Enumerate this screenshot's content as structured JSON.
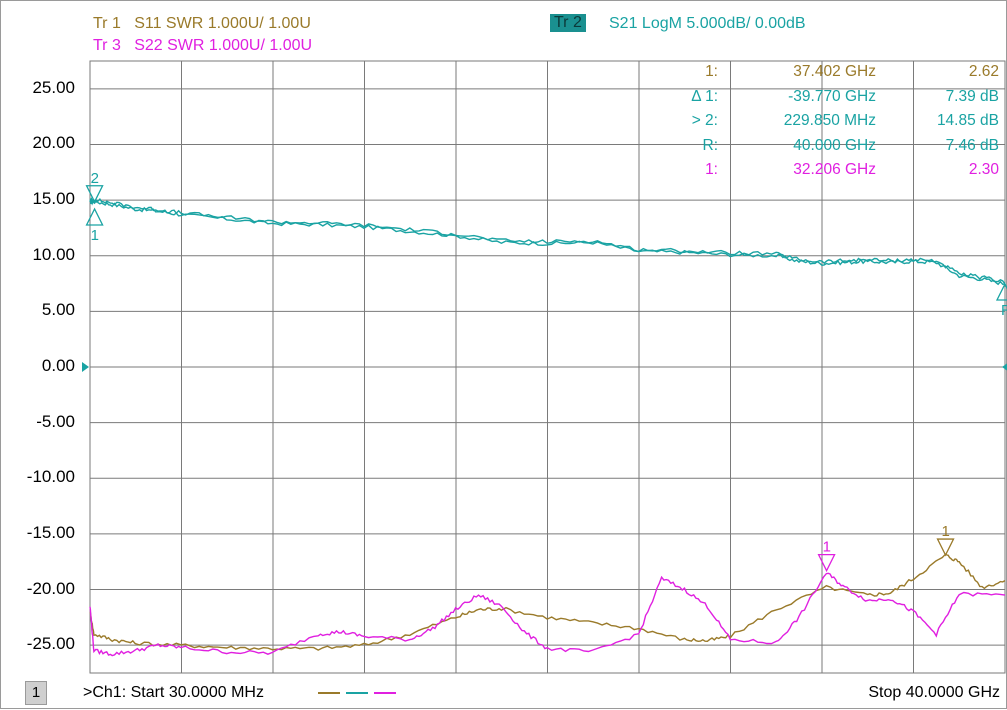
{
  "colors": {
    "tr1": "#9a7a2a",
    "tr2": "#1aa3a3",
    "tr3": "#e020e0",
    "grid": "#7a7a7a",
    "tr2_badge_bg": "#1a9090"
  },
  "traces": {
    "tr1": {
      "id": "Tr 1",
      "desc": "S11 SWR 1.000U/  1.00U"
    },
    "tr3": {
      "id": "Tr 3",
      "desc": "S22 SWR 1.000U/  1.00U"
    },
    "tr2": {
      "id": "Tr 2",
      "desc": "S21 LogM 5.000dB/  0.00dB"
    }
  },
  "markers_table": [
    {
      "name": "1:",
      "freq": "37.402 GHz",
      "value": "2.62",
      "trace": "tr1"
    },
    {
      "name": "Δ 1:",
      "freq": "-39.770 GHz",
      "value": "7.39 dB",
      "trace": "tr2"
    },
    {
      "name": "> 2:",
      "freq": "229.850 MHz",
      "value": "14.85 dB",
      "trace": "tr2"
    },
    {
      "name": "R:",
      "freq": "40.000 GHz",
      "value": "7.46 dB",
      "trace": "tr2"
    },
    {
      "name": "1:",
      "freq": "32.206 GHz",
      "value": "2.30",
      "trace": "tr3"
    }
  ],
  "status": {
    "channel_number": "1",
    "start": ">Ch1: Start  30.0000 MHz",
    "stop": "Stop  40.0000 GHz"
  },
  "chart_data": {
    "type": "line",
    "xlabel": "",
    "ylabel": "",
    "xlim": [
      0.03,
      40.0
    ],
    "x_unit": "GHz",
    "ylim": [
      -27.5,
      27.5
    ],
    "y_ticks": [
      "25.00",
      "20.00",
      "15.00",
      "10.00",
      "5.00",
      "0.00",
      "-5.00",
      "-10.00",
      "-15.00",
      "-20.00",
      "-25.00"
    ],
    "y_tick_values": [
      25,
      20,
      15,
      10,
      5,
      0,
      -5,
      -10,
      -15,
      -20,
      -25
    ],
    "grid": true,
    "reference_level": 0,
    "series": [
      {
        "name": "S21",
        "trace": "tr2",
        "x": [
          0.03,
          0.23,
          1.0,
          2.0,
          3.0,
          4.0,
          6.0,
          8.0,
          10.0,
          12.0,
          14.0,
          16.0,
          18.0,
          20.0,
          22.0,
          24.0,
          26.0,
          28.0,
          30.0,
          31.0,
          32.0,
          33.0,
          34.0,
          35.0,
          36.0,
          37.0,
          38.0,
          39.0,
          40.0
        ],
        "y": [
          14.8,
          14.85,
          14.6,
          14.2,
          14.0,
          13.7,
          13.3,
          12.9,
          12.8,
          12.6,
          12.2,
          11.8,
          11.2,
          11.1,
          11.2,
          10.4,
          10.3,
          10.1,
          10.0,
          9.5,
          9.3,
          9.4,
          9.5,
          9.4,
          9.5,
          9.4,
          8.2,
          7.9,
          7.46
        ]
      },
      {
        "name": "S11",
        "trace": "tr1",
        "x": [
          0.03,
          0.2,
          1.0,
          2.0,
          4.0,
          6.0,
          8.0,
          10.0,
          12.0,
          14.0,
          16.0,
          17.0,
          18.0,
          20.0,
          22.0,
          24.0,
          26.0,
          27.0,
          28.0,
          30.0,
          32.2,
          34.0,
          35.0,
          36.0,
          37.4,
          38.0,
          39.0,
          40.0
        ],
        "y": [
          -22.0,
          -24.0,
          -24.5,
          -24.8,
          -25.0,
          -25.2,
          -25.3,
          -25.3,
          -25.0,
          -24.0,
          -22.5,
          -21.8,
          -21.7,
          -22.5,
          -23.0,
          -23.5,
          -24.5,
          -24.6,
          -24.2,
          -21.8,
          -19.8,
          -20.5,
          -20.3,
          -19.0,
          -16.9,
          -17.5,
          -19.8,
          -19.2
        ]
      },
      {
        "name": "S22",
        "trace": "tr3",
        "x": [
          0.03,
          0.2,
          1.0,
          2.0,
          3.0,
          4.0,
          6.0,
          8.0,
          10.0,
          11.0,
          12.0,
          14.0,
          15.0,
          16.0,
          17.0,
          18.0,
          19.0,
          20.0,
          22.0,
          24.0,
          25.0,
          26.0,
          27.0,
          28.0,
          30.0,
          31.0,
          32.2,
          33.0,
          34.0,
          35.0,
          36.0,
          37.0,
          38.0,
          40.0
        ],
        "y": [
          -21.5,
          -25.5,
          -25.8,
          -25.5,
          -25.0,
          -25.2,
          -25.6,
          -25.7,
          -24.0,
          -23.8,
          -24.2,
          -24.5,
          -23.5,
          -21.8,
          -20.5,
          -21.5,
          -23.8,
          -25.3,
          -25.6,
          -24.0,
          -19.0,
          -20.0,
          -21.5,
          -24.5,
          -24.8,
          -22.5,
          -18.5,
          -19.8,
          -21.0,
          -20.8,
          -22.0,
          -24.0,
          -20.4,
          -20.5
        ]
      }
    ],
    "chart_markers": [
      {
        "label": "2",
        "trace": "tr2",
        "x": 0.23,
        "y": 14.85,
        "label_pos": "above"
      },
      {
        "label": "1",
        "trace": "tr2",
        "x": 0.23,
        "y": 14.2,
        "label_pos": "below",
        "inverted": true
      },
      {
        "label": "R",
        "trace": "tr2",
        "x": 40.0,
        "y": 7.46,
        "label_pos": "below",
        "inverted": true
      },
      {
        "label": "1",
        "trace": "tr3",
        "x": 32.206,
        "y": -18.3,
        "label_pos": "above"
      },
      {
        "label": "1",
        "trace": "tr1",
        "x": 37.402,
        "y": -16.9,
        "label_pos": "above"
      }
    ]
  }
}
